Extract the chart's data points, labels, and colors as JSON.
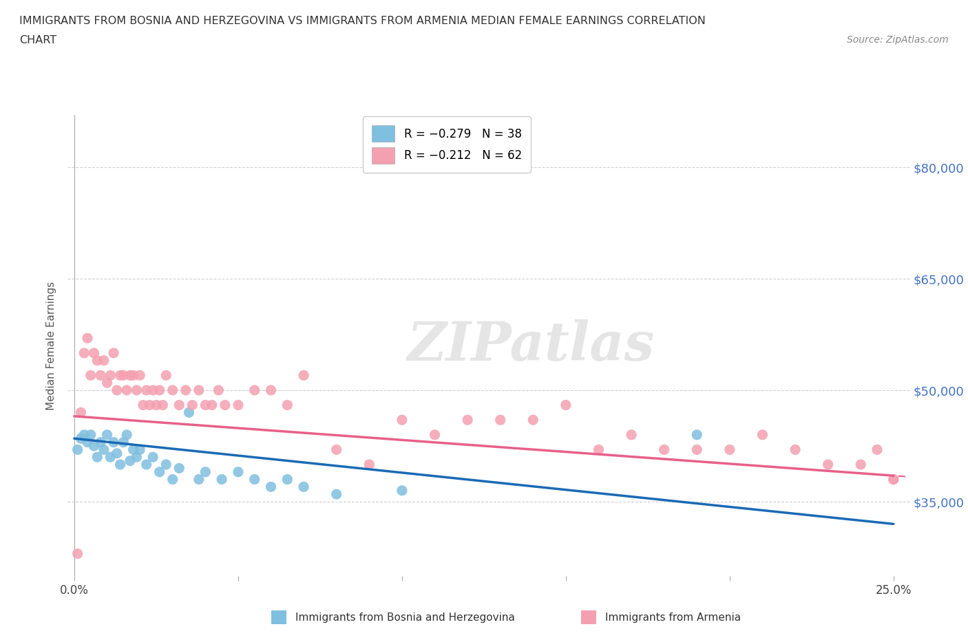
{
  "title_line1": "IMMIGRANTS FROM BOSNIA AND HERZEGOVINA VS IMMIGRANTS FROM ARMENIA MEDIAN FEMALE EARNINGS CORRELATION",
  "title_line2": "CHART",
  "source": "Source: ZipAtlas.com",
  "ylabel": "Median Female Earnings",
  "xlim": [
    -0.002,
    0.255
  ],
  "ylim": [
    25000,
    87000
  ],
  "yticks": [
    35000,
    50000,
    65000,
    80000
  ],
  "ytick_labels": [
    "$35,000",
    "$50,000",
    "$65,000",
    "$80,000"
  ],
  "xticks": [
    0.0,
    0.05,
    0.1,
    0.15,
    0.2,
    0.25
  ],
  "xtick_labels": [
    "0.0%",
    "",
    "",
    "",
    "",
    "25.0%"
  ],
  "background_color": "#ffffff",
  "grid_color": "#d0d0d0",
  "color_bosnia": "#7fbfdf",
  "color_armenia": "#f4a0b0",
  "trend_color_bosnia": "#1a6ab5",
  "trend_color_armenia": "#e8608a",
  "bosnia_x": [
    0.001,
    0.002,
    0.003,
    0.004,
    0.005,
    0.006,
    0.007,
    0.008,
    0.009,
    0.01,
    0.011,
    0.012,
    0.013,
    0.014,
    0.015,
    0.016,
    0.017,
    0.018,
    0.019,
    0.02,
    0.022,
    0.024,
    0.026,
    0.028,
    0.03,
    0.032,
    0.035,
    0.038,
    0.04,
    0.045,
    0.05,
    0.055,
    0.06,
    0.065,
    0.07,
    0.08,
    0.1,
    0.19
  ],
  "bosnia_y": [
    42000,
    43500,
    44000,
    43000,
    44000,
    42500,
    41000,
    43000,
    42000,
    44000,
    41000,
    43000,
    41500,
    40000,
    43000,
    44000,
    40500,
    42000,
    41000,
    42000,
    40000,
    41000,
    39000,
    40000,
    38000,
    39500,
    47000,
    38000,
    39000,
    38000,
    39000,
    38000,
    37000,
    38000,
    37000,
    36000,
    36500,
    44000
  ],
  "armenia_x": [
    0.001,
    0.002,
    0.003,
    0.004,
    0.005,
    0.006,
    0.007,
    0.008,
    0.009,
    0.01,
    0.011,
    0.012,
    0.013,
    0.014,
    0.015,
    0.016,
    0.017,
    0.018,
    0.019,
    0.02,
    0.021,
    0.022,
    0.023,
    0.024,
    0.025,
    0.026,
    0.027,
    0.028,
    0.03,
    0.032,
    0.034,
    0.036,
    0.038,
    0.04,
    0.042,
    0.044,
    0.046,
    0.05,
    0.055,
    0.06,
    0.065,
    0.07,
    0.08,
    0.09,
    0.1,
    0.11,
    0.12,
    0.13,
    0.14,
    0.15,
    0.16,
    0.17,
    0.18,
    0.19,
    0.2,
    0.21,
    0.22,
    0.23,
    0.24,
    0.245,
    0.25,
    0.25
  ],
  "armenia_y": [
    28000,
    47000,
    55000,
    57000,
    52000,
    55000,
    54000,
    52000,
    54000,
    51000,
    52000,
    55000,
    50000,
    52000,
    52000,
    50000,
    52000,
    52000,
    50000,
    52000,
    48000,
    50000,
    48000,
    50000,
    48000,
    50000,
    48000,
    52000,
    50000,
    48000,
    50000,
    48000,
    50000,
    48000,
    48000,
    50000,
    48000,
    48000,
    50000,
    50000,
    48000,
    52000,
    42000,
    40000,
    46000,
    44000,
    46000,
    46000,
    46000,
    48000,
    42000,
    44000,
    42000,
    42000,
    42000,
    44000,
    42000,
    40000,
    40000,
    42000,
    38000,
    38000
  ],
  "trend_bosnia_x0": 0.0,
  "trend_bosnia_x1": 0.25,
  "trend_bosnia_y0": 43500,
  "trend_bosnia_y1": 32000,
  "trend_armenia_x0": 0.0,
  "trend_armenia_x1": 0.25,
  "trend_armenia_y0": 46500,
  "trend_armenia_y1": 38500
}
